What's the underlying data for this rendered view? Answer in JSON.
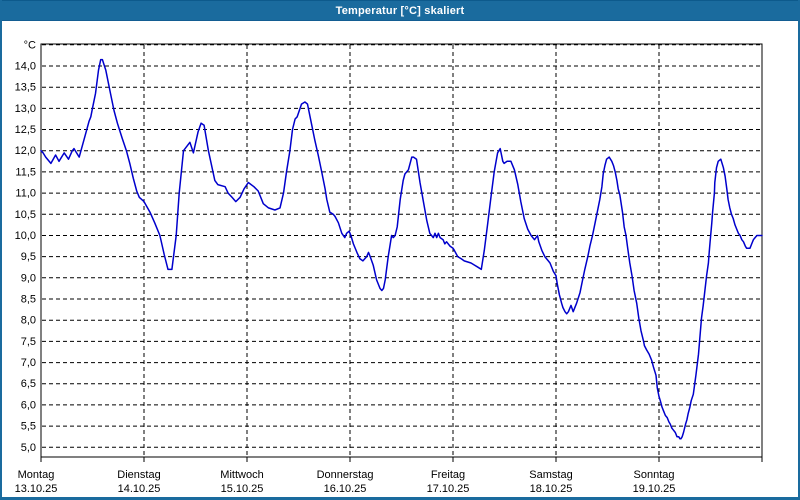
{
  "window": {
    "title": "Temperatur [°C] skaliert",
    "titlebar_color": "#1a6b9e",
    "border_color": "#1a6b9e"
  },
  "chart_data": {
    "type": "line",
    "title": "Temperatur [°C] skaliert",
    "line_color": "#0000cc",
    "grid_color": "#000000",
    "background_color": "#ffffff",
    "grid": "dashed",
    "legend": "none",
    "y_axis": {
      "unit_label": "°C",
      "tick_values": [
        14.0,
        13.5,
        13.0,
        12.5,
        12.0,
        11.5,
        11.0,
        10.5,
        10.0,
        9.5,
        9.0,
        8.5,
        8.0,
        7.5,
        7.0,
        6.5,
        6.0,
        5.5,
        5.0
      ],
      "tick_labels": [
        "14,0",
        "13,5",
        "13,0",
        "12,5",
        "12,0",
        "11,5",
        "11,0",
        "10,5",
        "10,0",
        "9,5",
        "9,0",
        "8,5",
        "8,0",
        "7,5",
        "7,0",
        "6,5",
        "6,0",
        "5,5",
        "5,0"
      ],
      "grid_values": [
        14.5,
        14.0,
        13.5,
        13.0,
        12.5,
        12.0,
        11.5,
        11.0,
        10.5,
        10.0,
        9.5,
        9.0,
        8.5,
        8.0,
        7.5,
        7.0,
        6.5,
        6.0,
        5.5,
        5.0
      ],
      "ylim": [
        4.77,
        14.52
      ]
    },
    "x_axis": {
      "hours_total": 168,
      "days": [
        {
          "name": "Montag",
          "date": "13.10.25"
        },
        {
          "name": "Dienstag",
          "date": "14.10.25"
        },
        {
          "name": "Mittwoch",
          "date": "15.10.25"
        },
        {
          "name": "Donnerstag",
          "date": "16.10.25"
        },
        {
          "name": "Freitag",
          "date": "17.10.25"
        },
        {
          "name": "Samstag",
          "date": "18.10.25"
        },
        {
          "name": "Sonntag",
          "date": "19.10.25"
        }
      ]
    },
    "series": [
      {
        "name": "Temperatur",
        "points": [
          [
            0,
            12.0
          ],
          [
            0.5,
            11.95
          ],
          [
            1.1,
            11.85
          ],
          [
            2.3,
            11.7
          ],
          [
            3.4,
            11.9
          ],
          [
            4.2,
            11.75
          ],
          [
            5.4,
            11.95
          ],
          [
            6.4,
            11.8
          ],
          [
            7.3,
            12.0
          ],
          [
            7.7,
            12.05
          ],
          [
            8.9,
            11.85
          ],
          [
            10,
            12.25
          ],
          [
            11.2,
            12.7
          ],
          [
            11.6,
            12.8
          ],
          [
            12.1,
            13.05
          ],
          [
            12.7,
            13.35
          ],
          [
            13.4,
            13.9
          ],
          [
            13.9,
            14.15
          ],
          [
            14.3,
            14.15
          ],
          [
            15.1,
            13.9
          ],
          [
            16.2,
            13.35
          ],
          [
            17,
            12.95
          ],
          [
            17.8,
            12.65
          ],
          [
            18.9,
            12.3
          ],
          [
            19.9,
            12.0
          ],
          [
            20.7,
            11.7
          ],
          [
            21.5,
            11.35
          ],
          [
            22.3,
            11.05
          ],
          [
            22.9,
            10.9
          ],
          [
            24,
            10.8
          ],
          [
            25.4,
            10.55
          ],
          [
            26.5,
            10.3
          ],
          [
            27.7,
            10.0
          ],
          [
            28.7,
            9.55
          ],
          [
            29.6,
            9.2
          ],
          [
            30.5,
            9.2
          ],
          [
            31.5,
            10.0
          ],
          [
            32.2,
            11.0
          ],
          [
            33.2,
            12.0
          ],
          [
            34.7,
            12.2
          ],
          [
            35.5,
            11.95
          ],
          [
            36.6,
            12.45
          ],
          [
            37.3,
            12.65
          ],
          [
            38,
            12.6
          ],
          [
            39,
            12.0
          ],
          [
            40.5,
            11.3
          ],
          [
            41.2,
            11.2
          ],
          [
            42.9,
            11.15
          ],
          [
            43.6,
            11.0
          ],
          [
            44.5,
            10.9
          ],
          [
            45.4,
            10.8
          ],
          [
            46.4,
            10.9
          ],
          [
            47.3,
            11.1
          ],
          [
            48.3,
            11.25
          ],
          [
            49.6,
            11.15
          ],
          [
            50.6,
            11.05
          ],
          [
            51.8,
            10.75
          ],
          [
            53,
            10.65
          ],
          [
            54.5,
            10.6
          ],
          [
            55.7,
            10.65
          ],
          [
            56.5,
            11.0
          ],
          [
            57.2,
            11.5
          ],
          [
            58,
            12.0
          ],
          [
            58.6,
            12.5
          ],
          [
            59.2,
            12.75
          ],
          [
            59.7,
            12.8
          ],
          [
            60.7,
            13.1
          ],
          [
            61.5,
            13.15
          ],
          [
            62.1,
            13.1
          ],
          [
            63.1,
            12.6
          ],
          [
            63.8,
            12.25
          ],
          [
            64.6,
            11.9
          ],
          [
            65.4,
            11.5
          ],
          [
            66.2,
            11.1
          ],
          [
            66.6,
            10.85
          ],
          [
            67.3,
            10.55
          ],
          [
            68.1,
            10.5
          ],
          [
            68.5,
            10.45
          ],
          [
            69.3,
            10.3
          ],
          [
            70.1,
            10.05
          ],
          [
            70.8,
            9.95
          ],
          [
            71.2,
            10.05
          ],
          [
            71.8,
            10.1
          ],
          [
            72.2,
            10.0
          ],
          [
            72.8,
            9.8
          ],
          [
            73.6,
            9.6
          ],
          [
            74.3,
            9.45
          ],
          [
            75,
            9.4
          ],
          [
            75.9,
            9.5
          ],
          [
            76.3,
            9.6
          ],
          [
            76.7,
            9.5
          ],
          [
            77.4,
            9.3
          ],
          [
            78.2,
            8.95
          ],
          [
            79,
            8.75
          ],
          [
            79.4,
            8.7
          ],
          [
            79.8,
            8.75
          ],
          [
            80.2,
            8.95
          ],
          [
            80.9,
            9.5
          ],
          [
            81.3,
            9.75
          ],
          [
            81.7,
            10.0
          ],
          [
            82.1,
            9.95
          ],
          [
            82.5,
            10.0
          ],
          [
            83,
            10.2
          ],
          [
            83.7,
            10.85
          ],
          [
            84.4,
            11.3
          ],
          [
            84.8,
            11.45
          ],
          [
            85.6,
            11.55
          ],
          [
            86.4,
            11.85
          ],
          [
            86.8,
            11.85
          ],
          [
            87.5,
            11.8
          ],
          [
            88.3,
            11.25
          ],
          [
            89.1,
            10.8
          ],
          [
            89.9,
            10.35
          ],
          [
            90.6,
            10.05
          ],
          [
            91.4,
            9.95
          ],
          [
            91.8,
            10.05
          ],
          [
            92.2,
            9.95
          ],
          [
            92.6,
            10.05
          ],
          [
            93,
            9.95
          ],
          [
            93.7,
            9.9
          ],
          [
            94.1,
            9.8
          ],
          [
            94.5,
            9.85
          ],
          [
            95.3,
            9.75
          ],
          [
            96,
            9.7
          ],
          [
            96.3,
            9.65
          ],
          [
            97.1,
            9.5
          ],
          [
            97.9,
            9.45
          ],
          [
            98.6,
            9.4
          ],
          [
            100.2,
            9.35
          ],
          [
            101,
            9.3
          ],
          [
            101.8,
            9.25
          ],
          [
            102.6,
            9.2
          ],
          [
            103.3,
            9.65
          ],
          [
            104.1,
            10.3
          ],
          [
            104.9,
            10.95
          ],
          [
            105.6,
            11.5
          ],
          [
            106.4,
            11.95
          ],
          [
            107,
            12.05
          ],
          [
            107.6,
            11.75
          ],
          [
            107.9,
            11.7
          ],
          [
            108.6,
            11.75
          ],
          [
            109.5,
            11.75
          ],
          [
            110.3,
            11.55
          ],
          [
            111.1,
            11.2
          ],
          [
            111.8,
            10.8
          ],
          [
            112.6,
            10.4
          ],
          [
            113.4,
            10.15
          ],
          [
            114.2,
            10.0
          ],
          [
            115,
            9.9
          ],
          [
            115.7,
            10.0
          ],
          [
            116,
            9.85
          ],
          [
            116.7,
            9.65
          ],
          [
            117.4,
            9.5
          ],
          [
            118.2,
            9.4
          ],
          [
            118.6,
            9.35
          ],
          [
            119.4,
            9.15
          ],
          [
            120,
            9.05
          ],
          [
            120.3,
            8.85
          ],
          [
            120.8,
            8.6
          ],
          [
            121.3,
            8.4
          ],
          [
            121.6,
            8.3
          ],
          [
            122.1,
            8.2
          ],
          [
            122.5,
            8.15
          ],
          [
            122.9,
            8.2
          ],
          [
            123.5,
            8.35
          ],
          [
            124,
            8.2
          ],
          [
            124.8,
            8.4
          ],
          [
            125.6,
            8.65
          ],
          [
            126.2,
            8.95
          ],
          [
            126.7,
            9.2
          ],
          [
            127.4,
            9.5
          ],
          [
            127.9,
            9.75
          ],
          [
            128.5,
            10.0
          ],
          [
            129.1,
            10.3
          ],
          [
            130.2,
            10.85
          ],
          [
            130.7,
            11.15
          ],
          [
            131,
            11.45
          ],
          [
            131.4,
            11.65
          ],
          [
            131.8,
            11.8
          ],
          [
            132.4,
            11.85
          ],
          [
            133,
            11.75
          ],
          [
            133.4,
            11.65
          ],
          [
            133.8,
            11.5
          ],
          [
            134.2,
            11.3
          ],
          [
            134.5,
            11.1
          ],
          [
            134.9,
            10.95
          ],
          [
            135.5,
            10.55
          ],
          [
            135.9,
            10.2
          ],
          [
            136.3,
            10.0
          ],
          [
            136.7,
            9.7
          ],
          [
            137.2,
            9.35
          ],
          [
            137.7,
            9.05
          ],
          [
            138.2,
            8.7
          ],
          [
            138.8,
            8.4
          ],
          [
            139.3,
            8.05
          ],
          [
            139.8,
            7.75
          ],
          [
            140.4,
            7.5
          ],
          [
            140.6,
            7.4
          ],
          [
            141.1,
            7.3
          ],
          [
            141.7,
            7.2
          ],
          [
            142.3,
            7.05
          ],
          [
            142.7,
            6.9
          ],
          [
            143.3,
            6.7
          ],
          [
            143.6,
            6.4
          ],
          [
            144,
            6.2
          ],
          [
            144.3,
            6.1
          ],
          [
            144.7,
            5.95
          ],
          [
            145.1,
            5.85
          ],
          [
            145.5,
            5.75
          ],
          [
            145.9,
            5.7
          ],
          [
            146.3,
            5.6
          ],
          [
            146.6,
            5.55
          ],
          [
            147,
            5.45
          ],
          [
            147.4,
            5.4
          ],
          [
            147.8,
            5.35
          ],
          [
            148.2,
            5.25
          ],
          [
            148.6,
            5.25
          ],
          [
            148.9,
            5.2
          ],
          [
            149.1,
            5.2
          ],
          [
            149.4,
            5.25
          ],
          [
            149.7,
            5.35
          ],
          [
            150.2,
            5.55
          ],
          [
            150.5,
            5.65
          ],
          [
            150.8,
            5.8
          ],
          [
            151.2,
            5.95
          ],
          [
            151.5,
            6.1
          ],
          [
            152,
            6.25
          ],
          [
            152.6,
            6.7
          ],
          [
            153.2,
            7.2
          ],
          [
            153.9,
            8.05
          ],
          [
            154.3,
            8.35
          ],
          [
            154.7,
            8.7
          ],
          [
            155.1,
            9.05
          ],
          [
            155.5,
            9.35
          ],
          [
            155.7,
            9.6
          ],
          [
            155.9,
            9.85
          ],
          [
            156.3,
            10.3
          ],
          [
            156.5,
            10.55
          ],
          [
            156.9,
            11.0
          ],
          [
            157,
            11.25
          ],
          [
            157.4,
            11.6
          ],
          [
            157.8,
            11.75
          ],
          [
            158.4,
            11.8
          ],
          [
            159,
            11.6
          ],
          [
            159.4,
            11.4
          ],
          [
            159.8,
            11.1
          ],
          [
            160.1,
            10.85
          ],
          [
            160.5,
            10.65
          ],
          [
            160.9,
            10.5
          ],
          [
            161.3,
            10.4
          ],
          [
            161.7,
            10.25
          ],
          [
            162.1,
            10.15
          ],
          [
            162.5,
            10.05
          ],
          [
            162.9,
            10.0
          ],
          [
            163.3,
            9.9
          ],
          [
            163.7,
            9.85
          ],
          [
            164.1,
            9.75
          ],
          [
            164.4,
            9.7
          ],
          [
            164.8,
            9.7
          ],
          [
            165.2,
            9.7
          ],
          [
            165.6,
            9.8
          ],
          [
            166,
            9.9
          ],
          [
            166.4,
            9.95
          ],
          [
            166.8,
            10.0
          ],
          [
            167.2,
            10.0
          ],
          [
            168,
            10.0
          ]
        ]
      }
    ]
  }
}
